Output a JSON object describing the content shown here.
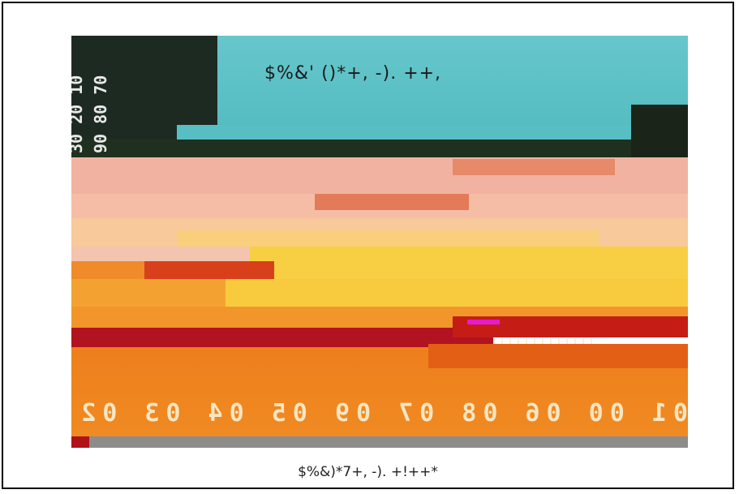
{
  "figure": {
    "overlay_text": "$%&' ()*+, -). ++,",
    "caption": "$%&)*7+, -). +!++*"
  },
  "colors": {
    "sky": "#5cc3c6",
    "dark": "#1d2a22",
    "pink": "#f2b2a0",
    "peach": "#f7c08a",
    "yellow": "#f9d04a",
    "orange": "#f29a2c",
    "red": "#b0121a",
    "deep_orange": "#ef7d1f",
    "gray": "#8a8a8a"
  }
}
